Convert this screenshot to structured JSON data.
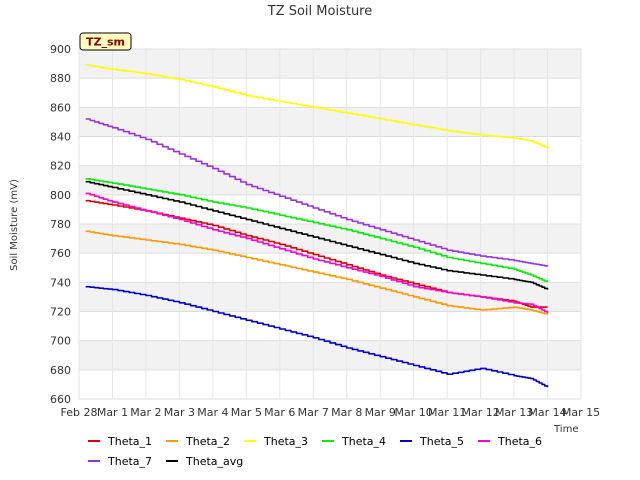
{
  "chart_data": {
    "type": "line",
    "title": "TZ Soil Moisture",
    "badge": "TZ_sm",
    "xlabel": "Time",
    "ylabel": "Soil Moisture (mV)",
    "xlim": [
      0,
      15
    ],
    "ylim": [
      660,
      900
    ],
    "yticks": [
      660,
      680,
      700,
      720,
      740,
      760,
      780,
      800,
      820,
      840,
      860,
      880,
      900
    ],
    "xtick_labels": [
      "Feb 28",
      "Mar 1",
      "Mar 2",
      "Mar 3",
      "Mar 4",
      "Mar 5",
      "Mar 6",
      "Mar 7",
      "Mar 8",
      "Mar 9",
      "Mar 10",
      "Mar 11",
      "Mar 12",
      "Mar 13",
      "Mar 14",
      "Mar 15"
    ],
    "x": [
      0.2,
      1,
      2,
      3,
      4,
      5,
      6,
      7,
      8,
      9,
      10,
      11,
      12,
      13,
      13.5,
      14
    ],
    "grid": true,
    "legend_position": "bottom",
    "series": [
      {
        "name": "Theta_1",
        "color": "#dd0000",
        "values": [
          796,
          793,
          789,
          784,
          779,
          772,
          766,
          759,
          752,
          745,
          739,
          733,
          730,
          727,
          723,
          723
        ]
      },
      {
        "name": "Theta_2",
        "color": "#ff9900",
        "values": [
          775,
          772,
          769,
          766,
          762,
          757,
          752,
          747,
          742,
          736,
          730,
          724,
          721,
          723,
          721,
          718
        ]
      },
      {
        "name": "Theta_3",
        "color": "#ffff00",
        "values": [
          889,
          886,
          883,
          879,
          874,
          868,
          864,
          860,
          856,
          852,
          848,
          844,
          841,
          839,
          837,
          832
        ]
      },
      {
        "name": "Theta_4",
        "color": "#00ee00",
        "values": [
          811,
          808,
          804,
          800,
          795,
          791,
          786,
          781,
          776,
          770,
          764,
          757,
          753,
          749,
          745,
          740
        ]
      },
      {
        "name": "Theta_5",
        "color": "#0000cc",
        "values": [
          737,
          735,
          731,
          726,
          720,
          714,
          708,
          702,
          695,
          689,
          683,
          677,
          681,
          676,
          674,
          668
        ]
      },
      {
        "name": "Theta_6",
        "color": "#ff00cc",
        "values": [
          801,
          795,
          789,
          783,
          776,
          770,
          763,
          756,
          750,
          744,
          737,
          733,
          730,
          726,
          725,
          719
        ]
      },
      {
        "name": "Theta_7",
        "color": "#9933dd",
        "values": [
          852,
          846,
          838,
          828,
          818,
          807,
          799,
          791,
          783,
          776,
          769,
          762,
          758,
          755,
          753,
          751
        ]
      },
      {
        "name": "Theta_avg",
        "color": "#000000",
        "values": [
          809,
          805,
          800,
          795,
          789,
          783,
          777,
          771,
          765,
          759,
          753,
          748,
          745,
          742,
          740,
          735
        ]
      }
    ]
  }
}
